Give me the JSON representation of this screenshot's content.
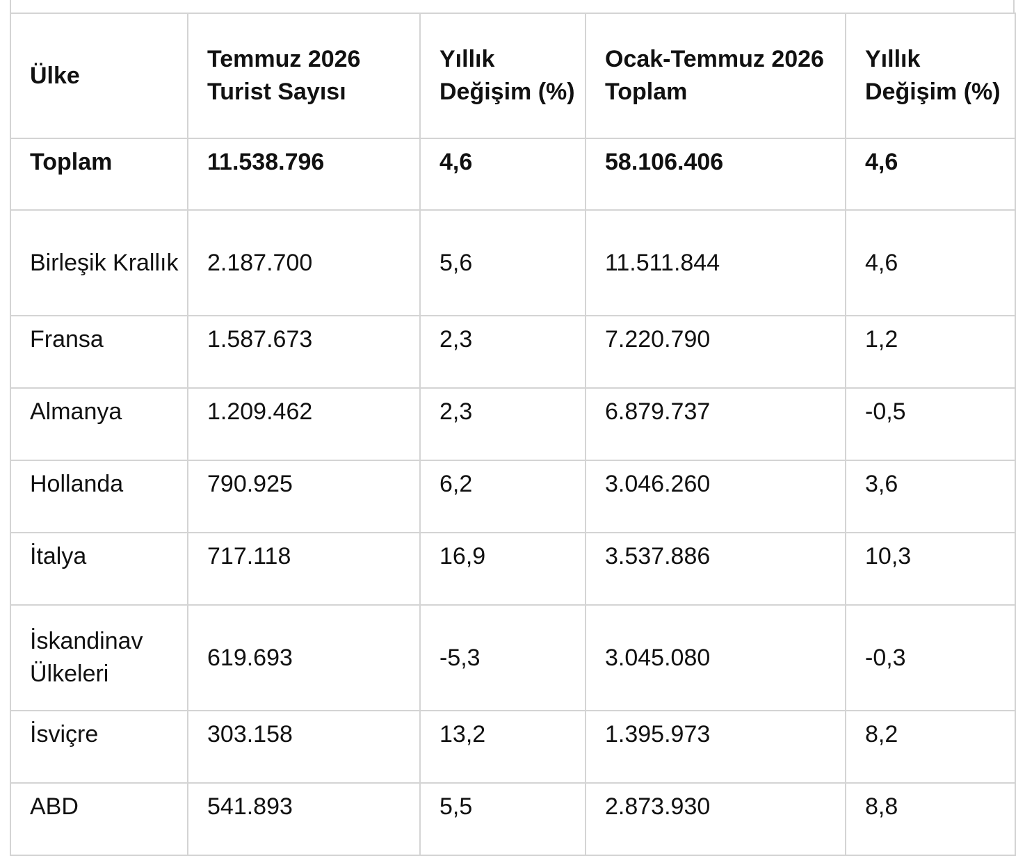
{
  "table": {
    "headers": [
      "Ülke",
      "Temmuz 2026 Turist Sayısı",
      "Yıllık Değişim (%)",
      "Ocak-Temmuz 2026 Toplam",
      "Yıllık Değişim (%)"
    ],
    "rows": [
      [
        "Toplam",
        "11.538.796",
        "4,6",
        "58.106.406",
        "4,6"
      ],
      [
        "Birleşik Krallık",
        "2.187.700",
        "5,6",
        "11.511.844",
        "4,6"
      ],
      [
        "Fransa",
        "1.587.673",
        "2,3",
        "7.220.790",
        "1,2"
      ],
      [
        "Almanya",
        "1.209.462",
        "2,3",
        "6.879.737",
        "-0,5"
      ],
      [
        "Hollanda",
        "790.925",
        "6,2",
        "3.046.260",
        "3,6"
      ],
      [
        "İtalya",
        "717.118",
        "16,9",
        "3.537.886",
        "10,3"
      ],
      [
        "İskandinav Ülkeleri",
        "619.693",
        "-5,3",
        "3.045.080",
        "-0,3"
      ],
      [
        "İsviçre",
        "303.158",
        "13,2",
        "1.395.973",
        "8,2"
      ],
      [
        "ABD",
        "541.893",
        "5,5",
        "2.873.930",
        "8,8"
      ]
    ]
  }
}
